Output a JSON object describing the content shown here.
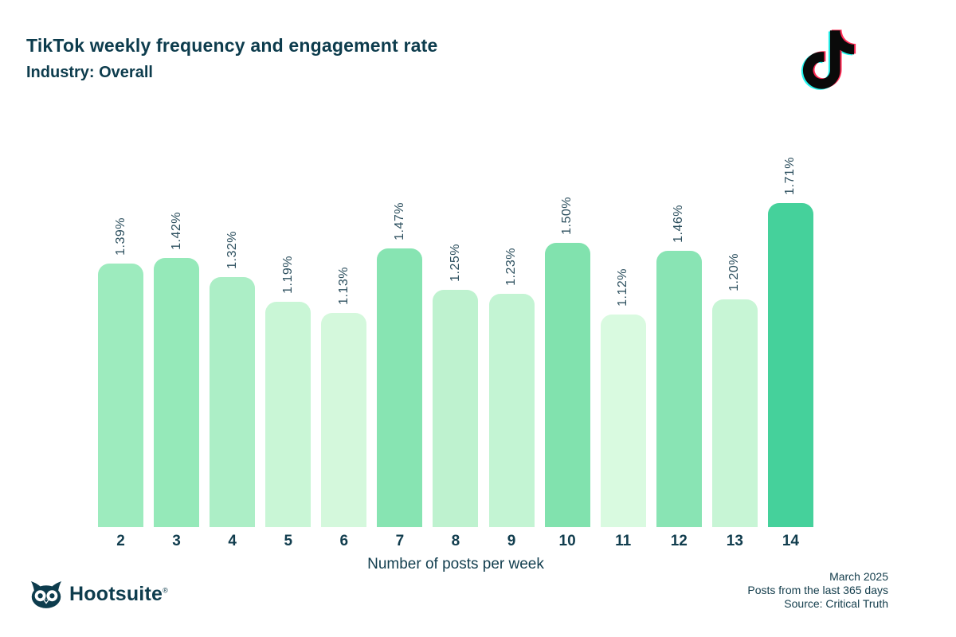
{
  "header": {
    "title": "TikTok weekly frequency and engagement rate",
    "subtitle": "Industry: Overall"
  },
  "icons": {
    "tiktok_logo": "tiktok-note-logo",
    "tiktok_colors": {
      "cyan": "#25f4ee",
      "red": "#fe2c55",
      "black": "#0a0a0a"
    },
    "hootsuite_owl": "owl-icon"
  },
  "chart_data": {
    "type": "bar",
    "title": "TikTok weekly frequency and engagement rate",
    "subtitle": "Industry: Overall",
    "categories": [
      "2",
      "3",
      "4",
      "5",
      "6",
      "7",
      "8",
      "9",
      "10",
      "11",
      "12",
      "13",
      "14"
    ],
    "values": [
      1.39,
      1.42,
      1.32,
      1.19,
      1.13,
      1.47,
      1.25,
      1.23,
      1.5,
      1.12,
      1.46,
      1.2,
      1.71
    ],
    "labels": [
      "1.39%",
      "1.42%",
      "1.32%",
      "1.19%",
      "1.13%",
      "1.47%",
      "1.25%",
      "1.23%",
      "1.50%",
      "1.12%",
      "1.46%",
      "1.20%",
      "1.71%"
    ],
    "colors": [
      "#9debbe",
      "#95e9b9",
      "#aceec6",
      "#c9f6d6",
      "#d4f8dc",
      "#87e4b2",
      "#bef2cf",
      "#c3f4d3",
      "#81e2ae",
      "#d9fae0",
      "#89e4b4",
      "#c7f5d5",
      "#45d19b"
    ],
    "xlabel": "Number of posts per week",
    "ylabel": "",
    "ylim": [
      0,
      1.71
    ],
    "grid": false,
    "legend": null,
    "bar_corner_radius": "rounded-top",
    "value_label_style": "rotated-90-above-bar",
    "text_color": "#113d4e"
  },
  "footer": {
    "brand": "Hootsuite",
    "registered": "®",
    "notes": [
      "March 2025",
      "Posts from the last 365 days",
      "Source: Critical Truth"
    ]
  }
}
